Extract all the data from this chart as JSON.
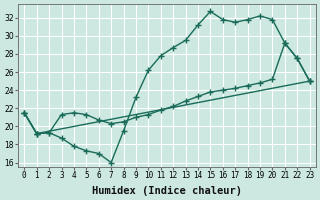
{
  "line1_x": [
    0,
    1,
    2,
    3,
    4,
    5,
    6,
    7,
    8,
    9,
    10,
    11,
    12,
    13,
    14,
    15,
    16,
    17,
    18,
    19,
    20,
    21,
    22,
    23
  ],
  "line1_y": [
    21.5,
    19.2,
    19.3,
    18.7,
    17.8,
    17.3,
    17.0,
    16.0,
    19.5,
    23.2,
    26.2,
    27.8,
    28.7,
    29.5,
    31.2,
    32.7,
    31.8,
    31.5,
    31.8,
    32.2,
    31.8,
    29.2,
    27.5,
    25.0
  ],
  "line2_x": [
    0,
    1,
    2,
    3,
    4,
    5,
    6,
    7,
    8,
    9,
    10,
    11,
    12,
    13,
    14,
    15,
    16,
    17,
    18,
    19,
    20,
    21,
    22,
    23
  ],
  "line2_y": [
    21.5,
    19.2,
    19.3,
    21.3,
    21.5,
    21.3,
    20.7,
    20.3,
    20.5,
    21.0,
    21.3,
    21.8,
    22.2,
    22.8,
    23.3,
    23.8,
    24.0,
    24.2,
    24.5,
    24.8,
    25.2,
    29.2,
    27.5,
    25.0
  ],
  "line3_x": [
    0,
    1,
    23
  ],
  "line3_y": [
    21.5,
    19.2,
    25.0
  ],
  "line_color": "#1a6b5a",
  "bg_color": "#cce8e0",
  "grid_color": "#ffffff",
  "ylabel_ticks": [
    16,
    18,
    20,
    22,
    24,
    26,
    28,
    30,
    32
  ],
  "xlabel": "Humidex (Indice chaleur)",
  "ylim": [
    15.5,
    33.5
  ],
  "xlim": [
    -0.5,
    23.5
  ],
  "marker": "+",
  "markersize": 4,
  "linewidth": 1.0,
  "tick_fontsize": 5.5,
  "xlabel_fontsize": 7.5
}
